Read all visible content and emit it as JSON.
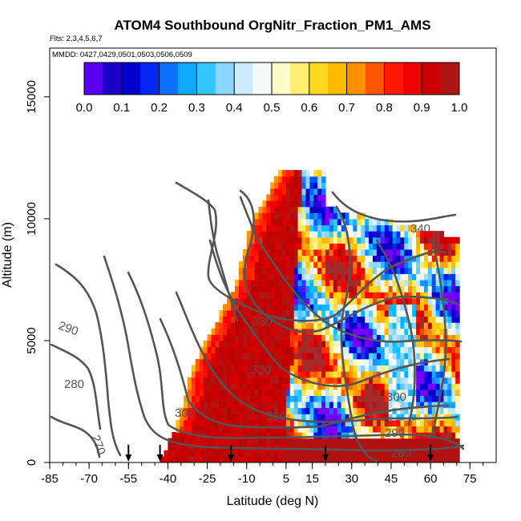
{
  "chart_data": {
    "type": "heatmap",
    "title": "ATOM4 Southbound OrgNitr_Fraction_PM1_AMS",
    "subtitle": "Flts: 2,3,4,5,6,7",
    "inset_label": "MMDD: 0427,0429,0501,0503,0506,0509",
    "xlabel": "Latitude (deg N)",
    "ylabel": "Altitude (m)",
    "xlim": [
      -85,
      85
    ],
    "ylim": [
      0,
      17000
    ],
    "x_ticks": [
      -85,
      -70,
      -55,
      -40,
      -25,
      -10,
      5,
      15,
      30,
      45,
      60,
      75
    ],
    "x_tick_labels": [
      "-85",
      "-70",
      "-55",
      "-40",
      "-25",
      "-10",
      "5",
      "15",
      "30",
      "45",
      "60",
      "75"
    ],
    "y_ticks": [
      0,
      5000,
      10000,
      15000
    ],
    "y_tick_labels": [
      "0",
      "5000",
      "10000",
      "15000"
    ],
    "colorbar": {
      "range": [
        0,
        1
      ],
      "ticks": [
        "0.0",
        "0.1",
        "0.2",
        "0.3",
        "0.4",
        "0.5",
        "0.6",
        "0.7",
        "0.8",
        "0.9",
        "1.0"
      ],
      "colors": [
        "#7a00ff",
        "#3a00e0",
        "#0000b0",
        "#0000e6",
        "#0050ff",
        "#1e90ff",
        "#00c0ff",
        "#66ccff",
        "#b0e2ff",
        "#e8f4ff",
        "#fffff0",
        "#fff7a0",
        "#ffe040",
        "#ffcc00",
        "#ffa500",
        "#ff7a00",
        "#ff3000",
        "#ff0000",
        "#dd0000",
        "#bb0000",
        "#a52a2a"
      ]
    },
    "contour_labels": [
      "340",
      "330",
      "320",
      "310",
      "300",
      "300",
      "290",
      "290",
      "280",
      "280",
      "270"
    ],
    "sounding_latitudes": [
      -55,
      -43,
      -16,
      20,
      60
    ]
  }
}
